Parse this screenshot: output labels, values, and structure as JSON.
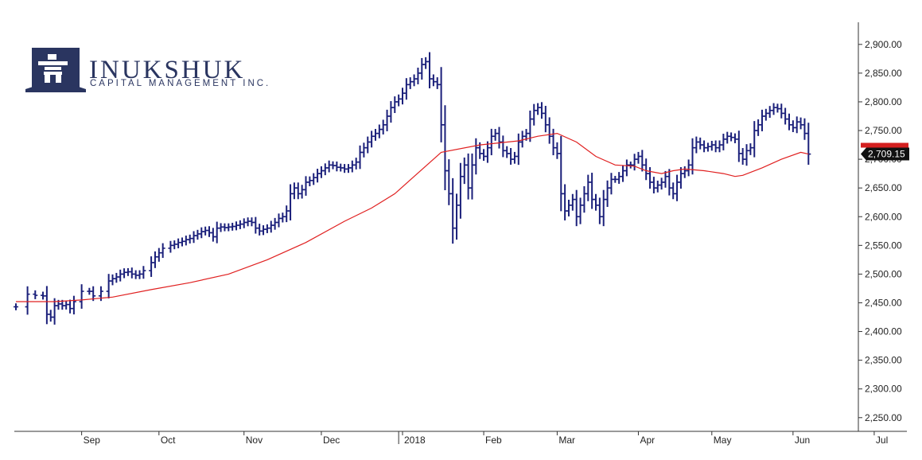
{
  "logo": {
    "name": "INUKSHUK",
    "subtitle": "CAPITAL MANAGEMENT INC."
  },
  "chart_data": {
    "type": "line",
    "series": [
      {
        "kind": "ohlc",
        "color": "#1a1f7a",
        "points": [
          [
            0,
            2443
          ],
          [
            3,
            2465
          ],
          [
            5,
            2463
          ],
          [
            7,
            2462
          ],
          [
            8,
            2430
          ],
          [
            9,
            2425
          ],
          [
            10,
            2445
          ],
          [
            11,
            2448
          ],
          [
            12,
            2445
          ],
          [
            13,
            2447
          ],
          [
            14,
            2440
          ],
          [
            15,
            2452
          ],
          [
            17,
            2470
          ],
          [
            19,
            2470
          ],
          [
            20,
            2462
          ],
          [
            22,
            2470
          ],
          [
            24,
            2488
          ],
          [
            25,
            2492
          ],
          [
            26,
            2495
          ],
          [
            27,
            2500
          ],
          [
            28,
            2503
          ],
          [
            29,
            2504
          ],
          [
            30,
            2500
          ],
          [
            31,
            2498
          ],
          [
            32,
            2500
          ],
          [
            33,
            2506
          ],
          [
            35,
            2520
          ],
          [
            36,
            2530
          ],
          [
            37,
            2537
          ],
          [
            38,
            2545
          ],
          [
            40,
            2550
          ],
          [
            41,
            2552
          ],
          [
            42,
            2555
          ],
          [
            43,
            2557
          ],
          [
            44,
            2560
          ],
          [
            45,
            2562
          ],
          [
            46,
            2567
          ],
          [
            47,
            2570
          ],
          [
            48,
            2574
          ],
          [
            49,
            2576
          ],
          [
            50,
            2572
          ],
          [
            51,
            2565
          ],
          [
            52,
            2580
          ],
          [
            53,
            2582
          ],
          [
            54,
            2581
          ],
          [
            55,
            2582
          ],
          [
            56,
            2583
          ],
          [
            57,
            2585
          ],
          [
            58,
            2587
          ],
          [
            59,
            2590
          ],
          [
            60,
            2592
          ],
          [
            61,
            2590
          ],
          [
            62,
            2580
          ],
          [
            63,
            2575
          ],
          [
            64,
            2578
          ],
          [
            65,
            2580
          ],
          [
            66,
            2585
          ],
          [
            67,
            2590
          ],
          [
            68,
            2597
          ],
          [
            69,
            2600
          ],
          [
            70,
            2610
          ],
          [
            71,
            2640
          ],
          [
            72,
            2650
          ],
          [
            73,
            2640
          ],
          [
            74,
            2647
          ],
          [
            75,
            2660
          ],
          [
            76,
            2663
          ],
          [
            77,
            2668
          ],
          [
            78,
            2675
          ],
          [
            79,
            2680
          ],
          [
            80,
            2685
          ],
          [
            81,
            2690
          ],
          [
            82,
            2689
          ],
          [
            83,
            2686
          ],
          [
            84,
            2685
          ],
          [
            85,
            2683
          ],
          [
            86,
            2685
          ],
          [
            87,
            2690
          ],
          [
            88,
            2695
          ],
          [
            89,
            2712
          ],
          [
            90,
            2720
          ],
          [
            91,
            2730
          ],
          [
            92,
            2740
          ],
          [
            93,
            2745
          ],
          [
            94,
            2752
          ],
          [
            95,
            2760
          ],
          [
            96,
            2775
          ],
          [
            97,
            2790
          ],
          [
            98,
            2800
          ],
          [
            99,
            2805
          ],
          [
            100,
            2815
          ],
          [
            101,
            2830
          ],
          [
            102,
            2835
          ],
          [
            103,
            2840
          ],
          [
            104,
            2850
          ],
          [
            105,
            2865
          ],
          [
            106,
            2870
          ],
          [
            107,
            2840
          ],
          [
            108,
            2835
          ],
          [
            109,
            2830
          ],
          [
            110,
            2760
          ],
          [
            111,
            2680
          ],
          [
            112,
            2640
          ],
          [
            113,
            2580
          ],
          [
            114,
            2620
          ],
          [
            115,
            2670
          ],
          [
            116,
            2690
          ],
          [
            117,
            2650
          ],
          [
            118,
            2690
          ],
          [
            119,
            2720
          ],
          [
            120,
            2710
          ],
          [
            121,
            2705
          ],
          [
            122,
            2720
          ],
          [
            123,
            2740
          ],
          [
            124,
            2745
          ],
          [
            125,
            2730
          ],
          [
            126,
            2715
          ],
          [
            127,
            2710
          ],
          [
            128,
            2700
          ],
          [
            129,
            2705
          ],
          [
            130,
            2730
          ],
          [
            131,
            2740
          ],
          [
            132,
            2745
          ],
          [
            133,
            2770
          ],
          [
            134,
            2785
          ],
          [
            135,
            2790
          ],
          [
            136,
            2780
          ],
          [
            137,
            2760
          ],
          [
            138,
            2740
          ],
          [
            139,
            2720
          ],
          [
            140,
            2710
          ],
          [
            141,
            2640
          ],
          [
            142,
            2610
          ],
          [
            143,
            2620
          ],
          [
            144,
            2630
          ],
          [
            145,
            2600
          ],
          [
            146,
            2620
          ],
          [
            147,
            2640
          ],
          [
            148,
            2660
          ],
          [
            149,
            2630
          ],
          [
            150,
            2620
          ],
          [
            151,
            2600
          ],
          [
            152,
            2630
          ],
          [
            153,
            2650
          ],
          [
            154,
            2665
          ],
          [
            155,
            2665
          ],
          [
            156,
            2670
          ],
          [
            157,
            2680
          ],
          [
            158,
            2690
          ],
          [
            159,
            2690
          ],
          [
            160,
            2700
          ],
          [
            161,
            2705
          ],
          [
            162,
            2690
          ],
          [
            163,
            2675
          ],
          [
            164,
            2660
          ],
          [
            165,
            2650
          ],
          [
            166,
            2655
          ],
          [
            167,
            2660
          ],
          [
            168,
            2670
          ],
          [
            169,
            2650
          ],
          [
            170,
            2640
          ],
          [
            171,
            2660
          ],
          [
            172,
            2675
          ],
          [
            173,
            2680
          ],
          [
            174,
            2690
          ],
          [
            175,
            2720
          ],
          [
            176,
            2730
          ],
          [
            177,
            2725
          ],
          [
            178,
            2720
          ],
          [
            179,
            2722
          ],
          [
            180,
            2725
          ],
          [
            181,
            2720
          ],
          [
            182,
            2725
          ],
          [
            183,
            2735
          ],
          [
            184,
            2740
          ],
          [
            185,
            2738
          ],
          [
            186,
            2735
          ],
          [
            187,
            2710
          ],
          [
            188,
            2700
          ],
          [
            189,
            2715
          ],
          [
            190,
            2720
          ],
          [
            191,
            2750
          ],
          [
            192,
            2760
          ],
          [
            193,
            2775
          ],
          [
            194,
            2780
          ],
          [
            195,
            2785
          ],
          [
            196,
            2790
          ],
          [
            197,
            2788
          ],
          [
            198,
            2780
          ],
          [
            199,
            2770
          ],
          [
            200,
            2760
          ],
          [
            201,
            2755
          ],
          [
            202,
            2765
          ],
          [
            203,
            2760
          ],
          [
            204,
            2745
          ],
          [
            205,
            2709
          ]
        ]
      },
      {
        "kind": "moving-average",
        "color": "#e02020",
        "points": [
          [
            0,
            2452
          ],
          [
            10,
            2452
          ],
          [
            17,
            2455
          ],
          [
            25,
            2460
          ],
          [
            35,
            2473
          ],
          [
            45,
            2485
          ],
          [
            55,
            2500
          ],
          [
            65,
            2525
          ],
          [
            75,
            2555
          ],
          [
            85,
            2592
          ],
          [
            92,
            2615
          ],
          [
            98,
            2640
          ],
          [
            103,
            2670
          ],
          [
            110,
            2712
          ],
          [
            120,
            2725
          ],
          [
            130,
            2732
          ],
          [
            135,
            2740
          ],
          [
            140,
            2745
          ],
          [
            145,
            2730
          ],
          [
            150,
            2705
          ],
          [
            155,
            2690
          ],
          [
            160,
            2688
          ],
          [
            163,
            2680
          ],
          [
            167,
            2675
          ],
          [
            170,
            2680
          ],
          [
            173,
            2683
          ],
          [
            178,
            2680
          ],
          [
            183,
            2675
          ],
          [
            186,
            2670
          ],
          [
            188,
            2672
          ],
          [
            193,
            2685
          ],
          [
            198,
            2700
          ],
          [
            203,
            2712
          ],
          [
            205,
            2709
          ]
        ]
      }
    ],
    "ylim": [
      2200,
      2925
    ],
    "yticks": [
      "2,250.00",
      "2,300.00",
      "2,350.00",
      "2,400.00",
      "2,450.00",
      "2,500.00",
      "2,550.00",
      "2,600.00",
      "2,650.00",
      "2,700.00",
      "2,750.00",
      "2,800.00",
      "2,850.00",
      "2,900.00"
    ],
    "ytick_values": [
      2250,
      2300,
      2350,
      2400,
      2450,
      2500,
      2550,
      2600,
      2650,
      2700,
      2750,
      2800,
      2850,
      2900
    ],
    "xticks": [
      {
        "label": "Sep",
        "pos": 17
      },
      {
        "label": "Oct",
        "pos": 37
      },
      {
        "label": "Nov",
        "pos": 59
      },
      {
        "label": "Dec",
        "pos": 79
      },
      {
        "label": "2018",
        "pos": 100
      },
      {
        "label": "Feb",
        "pos": 121
      },
      {
        "label": "Mar",
        "pos": 140
      },
      {
        "label": "Apr",
        "pos": 161
      },
      {
        "label": "May",
        "pos": 180
      },
      {
        "label": "Jun",
        "pos": 201
      },
      {
        "label": "Jul",
        "pos": 222
      }
    ],
    "year_divider_pos": 99,
    "last_value": "2,709.15",
    "grid": false
  }
}
